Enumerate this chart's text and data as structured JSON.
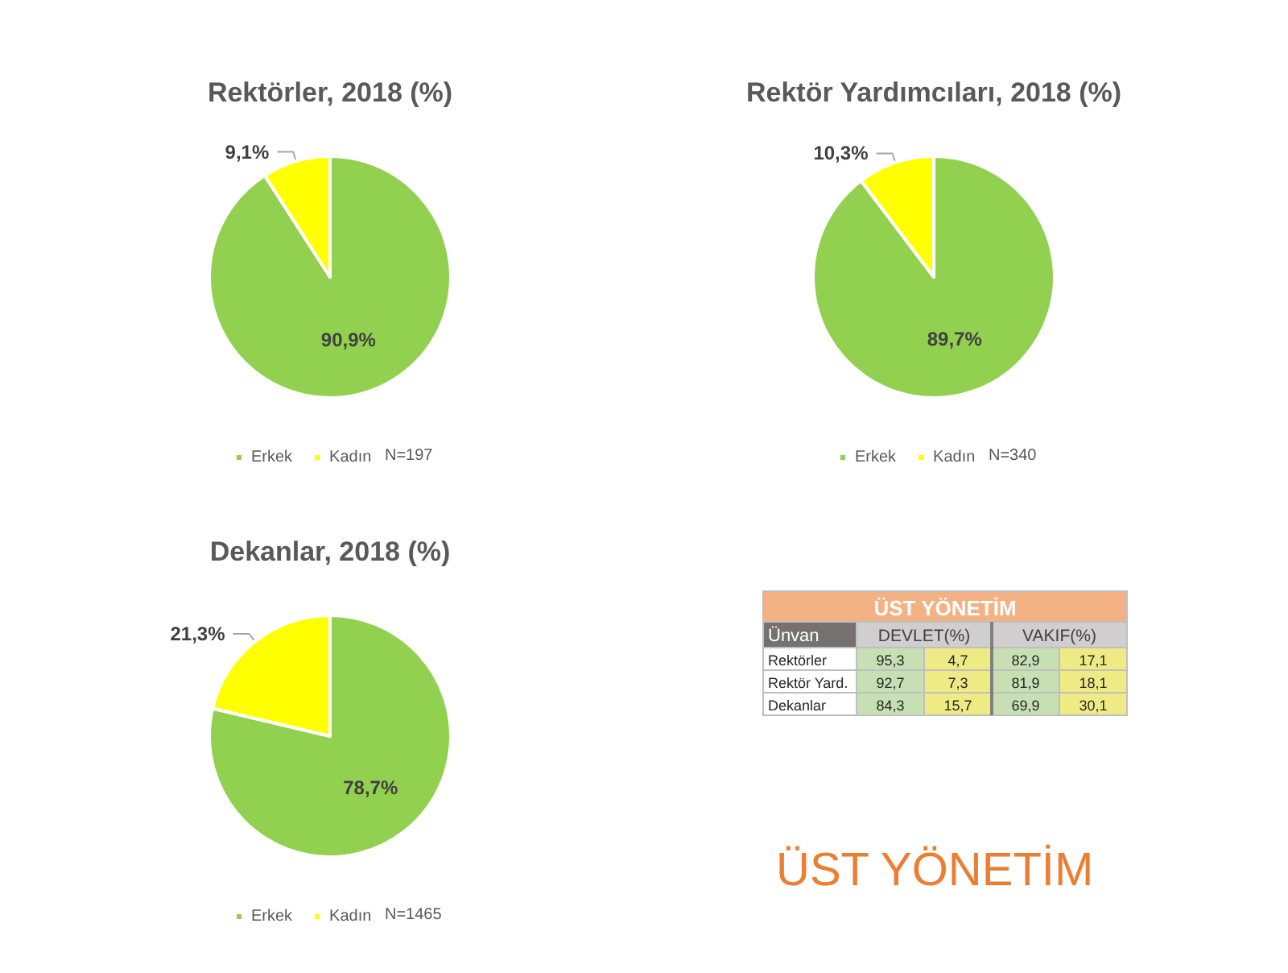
{
  "chart_data": [
    {
      "type": "pie",
      "title": "Rektörler, 2018 (%)",
      "categories": [
        "Erkek",
        "Kadın"
      ],
      "values": [
        90.9,
        9.1
      ],
      "colors": [
        "#92d050",
        "#ffff00"
      ],
      "value_labels": [
        "90,9%",
        "9,1%"
      ],
      "legend": "bottom",
      "annotations": [
        "N=197"
      ]
    },
    {
      "type": "pie",
      "title": "Rektör Yardımcıları, 2018 (%)",
      "categories": [
        "Erkek",
        "Kadın"
      ],
      "values": [
        89.7,
        10.3
      ],
      "colors": [
        "#92d050",
        "#ffff00"
      ],
      "value_labels": [
        "89,7%",
        "10,3%"
      ],
      "legend": "bottom",
      "annotations": [
        "N=340"
      ]
    },
    {
      "type": "pie",
      "title": "Dekanlar, 2018 (%)",
      "categories": [
        "Erkek",
        "Kadın"
      ],
      "values": [
        78.7,
        21.3
      ],
      "colors": [
        "#92d050",
        "#ffff00"
      ],
      "value_labels": [
        "78,7%",
        "21,3%"
      ],
      "legend": "bottom",
      "annotations": [
        "N=1465"
      ]
    },
    {
      "type": "other",
      "title": "ÜST YÖNETİM",
      "ylabel": "Ünvan",
      "categories": [
        "Rektörler",
        "Rektör Yard.",
        "Dekanlar"
      ],
      "series": [
        {
          "name": "DEVLET(%)",
          "color": "#c6e0b4",
          "values": [
            95.3,
            92.7,
            84.3
          ],
          "value_labels": [
            "95,3",
            "92,7",
            "84,3"
          ]
        },
        {
          "color": "#efeb84",
          "values": [
            4.7,
            7.3,
            15.7
          ],
          "value_labels": [
            "4,7",
            "7,3",
            "15,7"
          ]
        },
        {
          "name": "VAKIF(%)",
          "color": "#c6e0b4",
          "values": [
            82.9,
            81.9,
            69.9
          ],
          "value_labels": [
            "82,9",
            "81,9",
            "69,9"
          ]
        },
        {
          "color": "#efeb84",
          "values": [
            17.1,
            18.1,
            30.1
          ],
          "value_labels": [
            "17,1",
            "18,1",
            "30,1"
          ]
        }
      ],
      "annotations": [
        "ÜST YÖNETİM"
      ]
    }
  ]
}
